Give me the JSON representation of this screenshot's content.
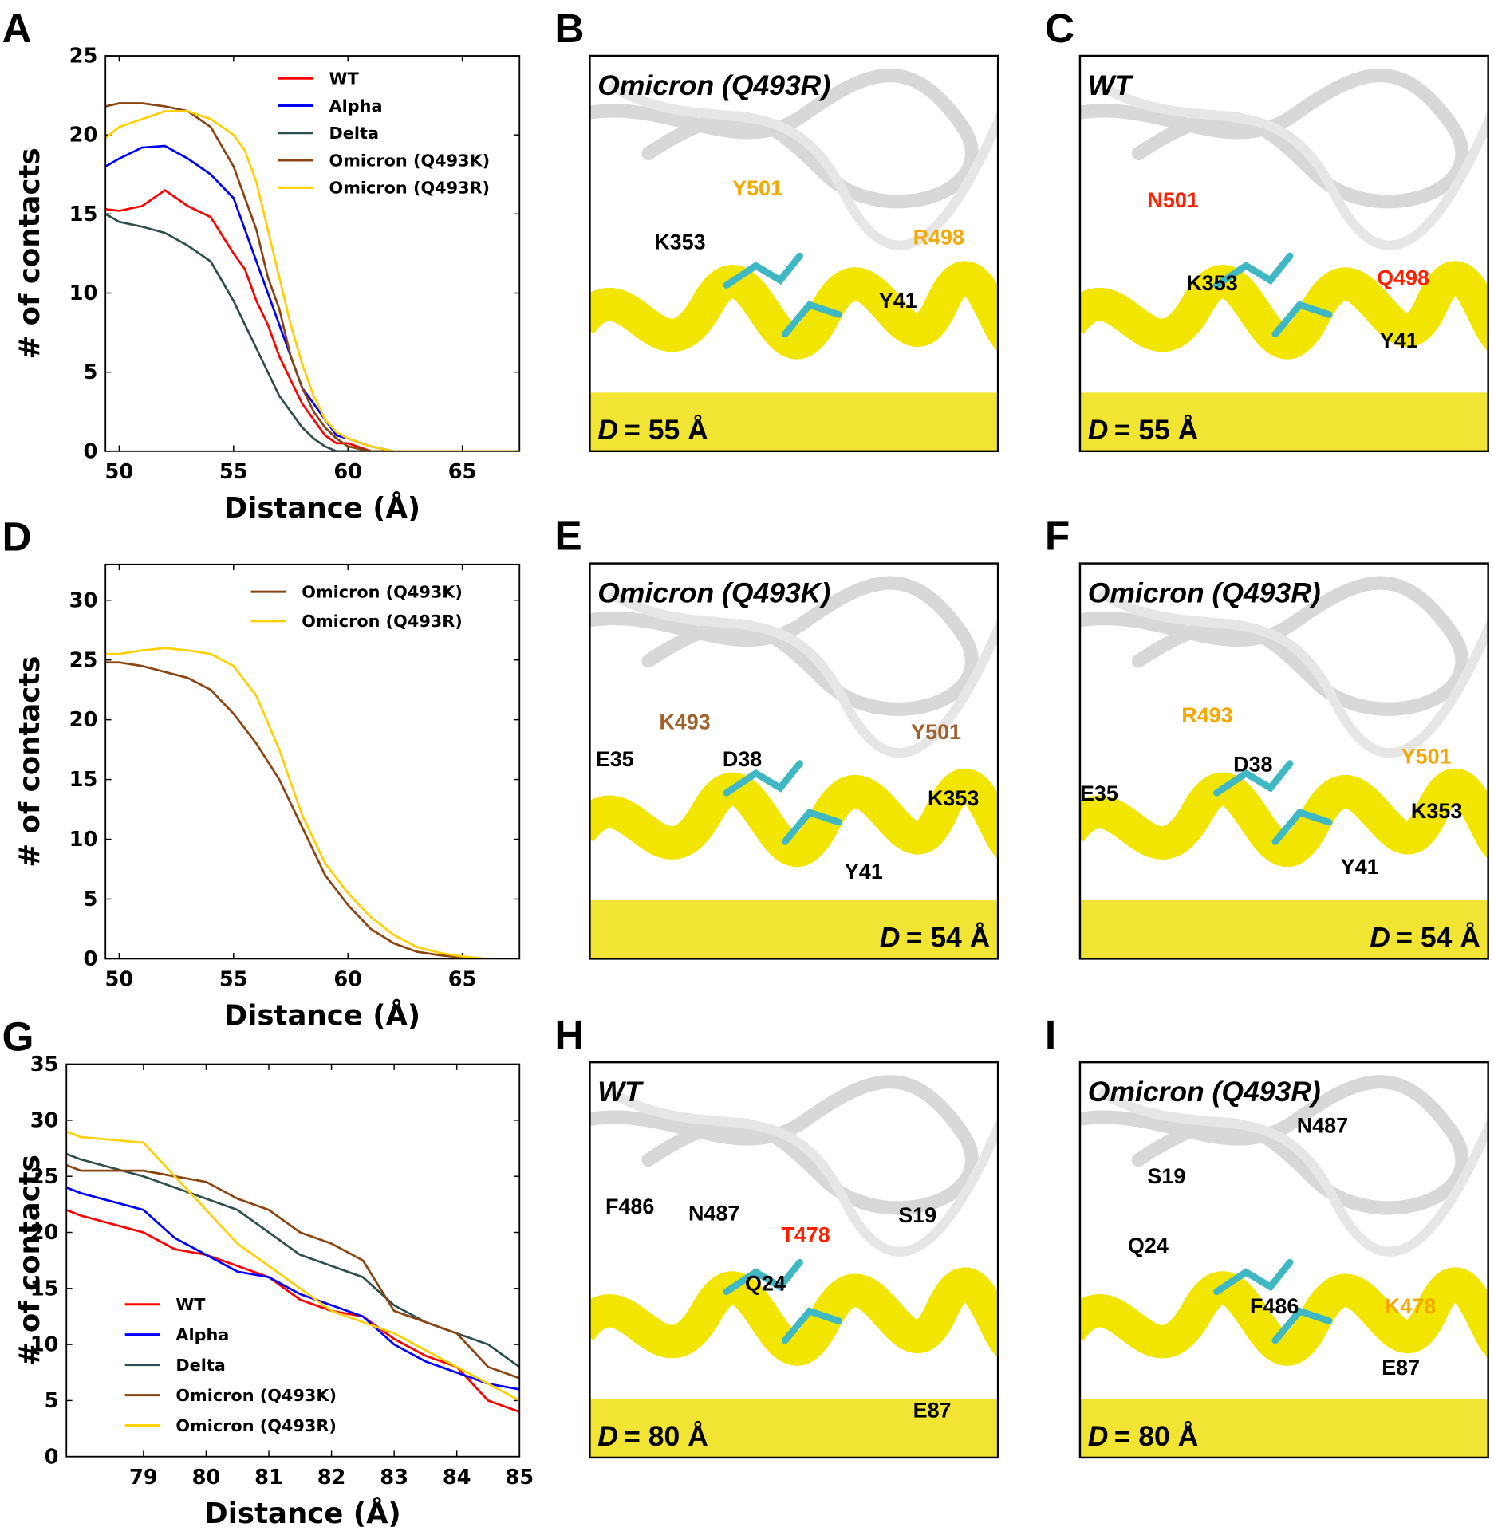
{
  "chart_data": [
    {
      "type": "line",
      "panel_label": "A",
      "xlabel": "Distance (Å)",
      "ylabel": "# of contacts",
      "x": [
        49.4,
        50,
        51,
        52,
        53,
        54,
        55,
        55.5,
        56,
        56.5,
        57,
        57.5,
        58,
        58.5,
        59,
        59.5,
        60,
        61,
        62,
        67.5
      ],
      "series": [
        {
          "name": "WT",
          "color": "#ff0000",
          "values": [
            15.3,
            15.2,
            15.5,
            16.5,
            15.5,
            14.8,
            12.5,
            11.5,
            9.5,
            8,
            6,
            4.5,
            3,
            2,
            1,
            0.5,
            0.5,
            0,
            0,
            0
          ]
        },
        {
          "name": "Alpha",
          "color": "#0000ff",
          "values": [
            18,
            18.5,
            19.2,
            19.3,
            18.5,
            17.5,
            16,
            14,
            12,
            10,
            8,
            6,
            4,
            3,
            2,
            1,
            0.8,
            0.3,
            0,
            0
          ]
        },
        {
          "name": "Delta",
          "color": "#2f4f4f",
          "values": [
            15,
            14.5,
            14.2,
            13.8,
            13,
            12,
            9.5,
            8,
            6.5,
            5,
            3.5,
            2.5,
            1.5,
            0.8,
            0.3,
            0,
            0,
            0,
            0,
            0
          ]
        },
        {
          "name": "Omicron (Q493K)",
          "color": "#8b4513",
          "values": [
            21.8,
            22,
            22,
            21.8,
            21.5,
            20.5,
            18,
            16,
            14,
            11,
            9,
            6,
            4,
            2.5,
            1.5,
            0.8,
            0.3,
            0,
            0,
            0
          ]
        },
        {
          "name": "Omicron (Q493R)",
          "color": "#ffd000",
          "values": [
            19.8,
            20.5,
            21,
            21.5,
            21.5,
            21,
            20,
            19,
            17,
            14,
            11,
            8,
            5.5,
            3.5,
            2,
            1.2,
            0.8,
            0.3,
            0,
            0
          ]
        }
      ],
      "xlim": [
        49.4,
        67.5
      ],
      "xticks": [
        50,
        55,
        60,
        65
      ],
      "ylim": [
        0,
        25
      ],
      "yticks": [
        0,
        5,
        10,
        15,
        20,
        25
      ],
      "legend": "upper center"
    },
    {
      "type": "line",
      "panel_label": "D",
      "xlabel": "Distance (Å)",
      "ylabel": "# of contacts",
      "x": [
        49.4,
        50,
        51,
        52,
        53,
        54,
        55,
        56,
        57,
        58,
        59,
        60,
        61,
        62,
        63,
        64,
        65,
        66,
        67.5
      ],
      "series": [
        {
          "name": "Omicron (Q493K)",
          "color": "#8b4513",
          "values": [
            24.8,
            24.8,
            24.5,
            24,
            23.5,
            22.5,
            20.5,
            18,
            15,
            11,
            7,
            4.5,
            2.5,
            1.3,
            0.6,
            0.3,
            0.1,
            0,
            0
          ]
        },
        {
          "name": "Omicron (Q493R)",
          "color": "#ffd000",
          "values": [
            25.5,
            25.5,
            25.8,
            26,
            25.8,
            25.5,
            24.5,
            22,
            17.5,
            12,
            8,
            5.5,
            3.5,
            2,
            1,
            0.5,
            0.2,
            0,
            0
          ]
        }
      ],
      "xlim": [
        49.4,
        67.5
      ],
      "xticks": [
        50,
        55,
        60,
        65
      ],
      "ylim": [
        0,
        33
      ],
      "yticks": [
        0,
        5,
        10,
        15,
        20,
        25,
        30
      ],
      "legend": "upper right"
    },
    {
      "type": "line",
      "panel_label": "G",
      "xlabel": "Distance (Å)",
      "ylabel": "# of contacts",
      "x": [
        77.77,
        78,
        79,
        79.5,
        80,
        80.5,
        81,
        81.5,
        82,
        82.5,
        83,
        83.5,
        84,
        84.5,
        85
      ],
      "series": [
        {
          "name": "WT",
          "color": "#ff0000",
          "values": [
            22,
            21.5,
            20,
            18.5,
            18,
            17,
            16,
            14,
            13,
            12.5,
            10.5,
            9,
            8,
            5,
            4
          ]
        },
        {
          "name": "Alpha",
          "color": "#0000ff",
          "values": [
            24,
            23.5,
            22,
            19.5,
            18,
            16.5,
            16,
            14.5,
            13.5,
            12.5,
            10,
            8.5,
            7.5,
            6.5,
            6
          ]
        },
        {
          "name": "Delta",
          "color": "#2f4f4f",
          "values": [
            27,
            26.5,
            25,
            24,
            23,
            22,
            20,
            18,
            17,
            16,
            13.5,
            12,
            11,
            10,
            8
          ]
        },
        {
          "name": "Omicron (Q493K)",
          "color": "#8b4513",
          "values": [
            26,
            25.5,
            25.5,
            25,
            24.5,
            23,
            22,
            20,
            19,
            17.5,
            13,
            12,
            11,
            8,
            7
          ]
        },
        {
          "name": "Omicron (Q493R)",
          "color": "#ffd000",
          "values": [
            29,
            28.5,
            28,
            25,
            22,
            19,
            17,
            15,
            13,
            12,
            11,
            9.5,
            8,
            6.5,
            5
          ]
        }
      ],
      "xlim": [
        77.77,
        85
      ],
      "xticks": [
        79,
        80,
        81,
        82,
        83,
        84,
        85
      ],
      "ylim": [
        0,
        35
      ],
      "yticks": [
        0,
        5,
        10,
        15,
        20,
        25,
        30,
        35
      ],
      "legend": "lower left"
    }
  ],
  "structure_panels": [
    {
      "panel_label": "B",
      "title": "Omicron (Q493R)",
      "distance_symbol": "D",
      "distance_value": "= 55 Å",
      "labels": [
        {
          "text": "Y501",
          "color": "#f5a800"
        },
        {
          "text": "R498",
          "color": "#f5a800"
        },
        {
          "text": "K353",
          "color": "#000000"
        },
        {
          "text": "Y41",
          "color": "#000000"
        }
      ]
    },
    {
      "panel_label": "C",
      "title": "WT",
      "distance_symbol": "D",
      "distance_value": "= 55 Å",
      "labels": [
        {
          "text": "N501",
          "color": "#ff2000"
        },
        {
          "text": "Q498",
          "color": "#ff2000"
        },
        {
          "text": "K353",
          "color": "#000000"
        },
        {
          "text": "Y41",
          "color": "#000000"
        }
      ]
    },
    {
      "panel_label": "E",
      "title": "Omicron (Q493K)",
      "distance_symbol": "D",
      "distance_value": "= 54 Å",
      "labels": [
        {
          "text": "K493",
          "color": "#a0622d"
        },
        {
          "text": "Y501",
          "color": "#a0622d"
        },
        {
          "text": "E35",
          "color": "#000000"
        },
        {
          "text": "D38",
          "color": "#000000"
        },
        {
          "text": "K353",
          "color": "#000000"
        },
        {
          "text": "Y41",
          "color": "#000000"
        }
      ]
    },
    {
      "panel_label": "F",
      "title": "Omicron (Q493R)",
      "distance_symbol": "D",
      "distance_value": "= 54 Å",
      "labels": [
        {
          "text": "R493",
          "color": "#f5a800"
        },
        {
          "text": "Y501",
          "color": "#f5a800"
        },
        {
          "text": "E35",
          "color": "#000000"
        },
        {
          "text": "D38",
          "color": "#000000"
        },
        {
          "text": "K353",
          "color": "#000000"
        },
        {
          "text": "Y41",
          "color": "#000000"
        }
      ]
    },
    {
      "panel_label": "H",
      "title": "WT",
      "distance_symbol": "D",
      "distance_value": "= 80 Å",
      "labels": [
        {
          "text": "F486",
          "color": "#000000"
        },
        {
          "text": "N487",
          "color": "#000000"
        },
        {
          "text": "T478",
          "color": "#ff2000"
        },
        {
          "text": "S19",
          "color": "#000000"
        },
        {
          "text": "Q24",
          "color": "#000000"
        },
        {
          "text": "E87",
          "color": "#000000"
        }
      ]
    },
    {
      "panel_label": "I",
      "title": "Omicron (Q493R)",
      "distance_symbol": "D",
      "distance_value": "= 80 Å",
      "labels": [
        {
          "text": "N487",
          "color": "#000000"
        },
        {
          "text": "S19",
          "color": "#000000"
        },
        {
          "text": "Q24",
          "color": "#000000"
        },
        {
          "text": "F486",
          "color": "#000000"
        },
        {
          "text": "K478",
          "color": "#f5a800"
        },
        {
          "text": "E87",
          "color": "#000000"
        }
      ]
    }
  ]
}
